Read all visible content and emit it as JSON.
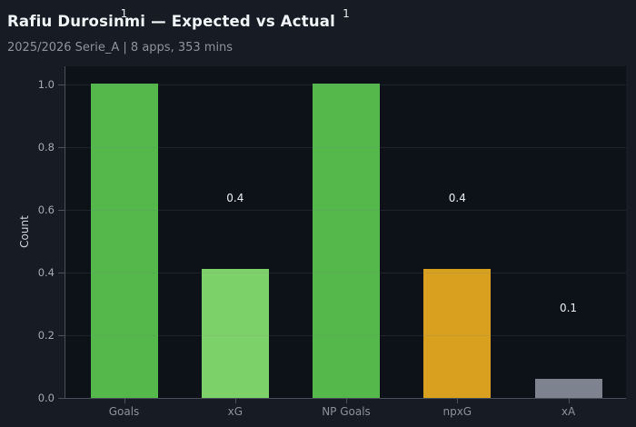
{
  "chart_data": {
    "type": "bar",
    "title": "Rafiu Durosinmi — Expected vs Actual",
    "subtitle": "2025/2026 Serie_A | 8 apps, 353 mins",
    "categories": [
      "Goals",
      "xG",
      "NP Goals",
      "npxG",
      "xA"
    ],
    "values": [
      1,
      0.41,
      1,
      0.41,
      0.06
    ],
    "bar_labels": [
      "1",
      "0.4",
      "1",
      "0.4",
      "0.1"
    ],
    "bar_colors": [
      "#54b84a",
      "#7cd269",
      "#54b84a",
      "#d8a01e",
      "#7d848f"
    ],
    "xlabel": "",
    "ylabel": "Count",
    "yticks": [
      0.0,
      0.2,
      0.4,
      0.6,
      0.8,
      1.0
    ],
    "ytick_labels": [
      "0.0",
      "0.2",
      "0.4",
      "0.6",
      "0.8",
      "1.0"
    ],
    "ylim": [
      0,
      1.06
    ],
    "grid": true,
    "legend": "none"
  },
  "colors": {
    "background": "#171b23",
    "plot_background": "#0d1118",
    "spine": "#4a505a",
    "gridline": "rgba(120,128,142,0.16)",
    "title_text": "#f2f5f8",
    "subtitle_text": "#8b949e",
    "tick_text": "#a3abb5",
    "bar_label_text": "#e9eef3",
    "green_actual": "#54b84a",
    "green_expected": "#7cd269",
    "gold_npxg": "#d8a01e",
    "grey_xa": "#7d848f"
  }
}
